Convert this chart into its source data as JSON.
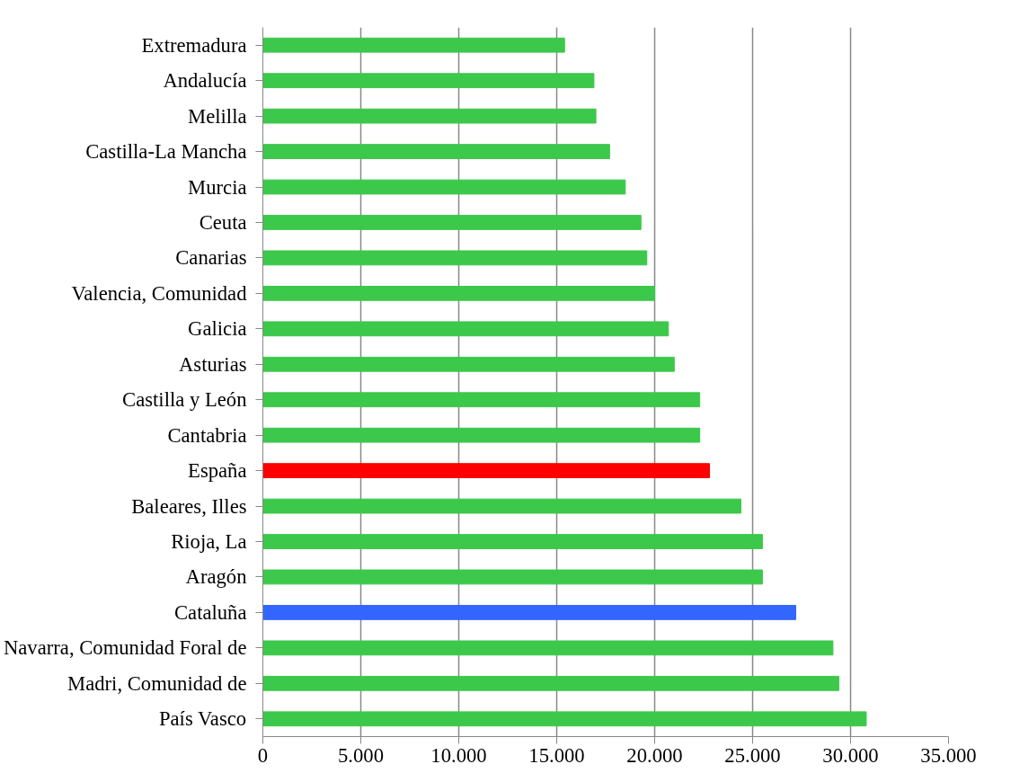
{
  "chart_data": {
    "type": "bar",
    "orientation": "horizontal",
    "categories": [
      "Extremadura",
      "Andalucía",
      "Melilla",
      "Castilla-La Mancha",
      "Murcia",
      "Ceuta",
      "Canarias",
      "Valencia, Comunidad",
      "Galicia",
      "Asturias",
      "Castilla y León",
      "Cantabria",
      "España",
      "Baleares, Illes",
      "Rioja, La",
      "Aragón",
      "Cataluña",
      "Navarra, Comunidad Foral de",
      "Madri, Comunidad de",
      "País Vasco"
    ],
    "values": [
      15400,
      16900,
      17000,
      17700,
      18500,
      19300,
      19600,
      20000,
      20700,
      21000,
      22300,
      22300,
      22800,
      24400,
      25500,
      25500,
      27200,
      29100,
      29400,
      30800
    ],
    "colors": [
      "#3cc84a",
      "#3cc84a",
      "#3cc84a",
      "#3cc84a",
      "#3cc84a",
      "#3cc84a",
      "#3cc84a",
      "#3cc84a",
      "#3cc84a",
      "#3cc84a",
      "#3cc84a",
      "#3cc84a",
      "#ff0000",
      "#3cc84a",
      "#3cc84a",
      "#3cc84a",
      "#3366ff",
      "#3cc84a",
      "#3cc84a",
      "#3cc84a"
    ],
    "xlim": [
      0,
      35000
    ],
    "xticks": [
      0,
      {
        "value": 5000,
        "label": "5.000"
      },
      {
        "value": 10000,
        "label": "10.000"
      },
      {
        "value": 15000,
        "label": "15.000"
      },
      {
        "value": 20000,
        "label": "20.000"
      },
      {
        "value": 25000,
        "label": "25.000"
      },
      {
        "value": 30000,
        "label": "30.000"
      },
      {
        "value": 35000,
        "label": "35.000"
      }
    ],
    "grid": "x"
  }
}
